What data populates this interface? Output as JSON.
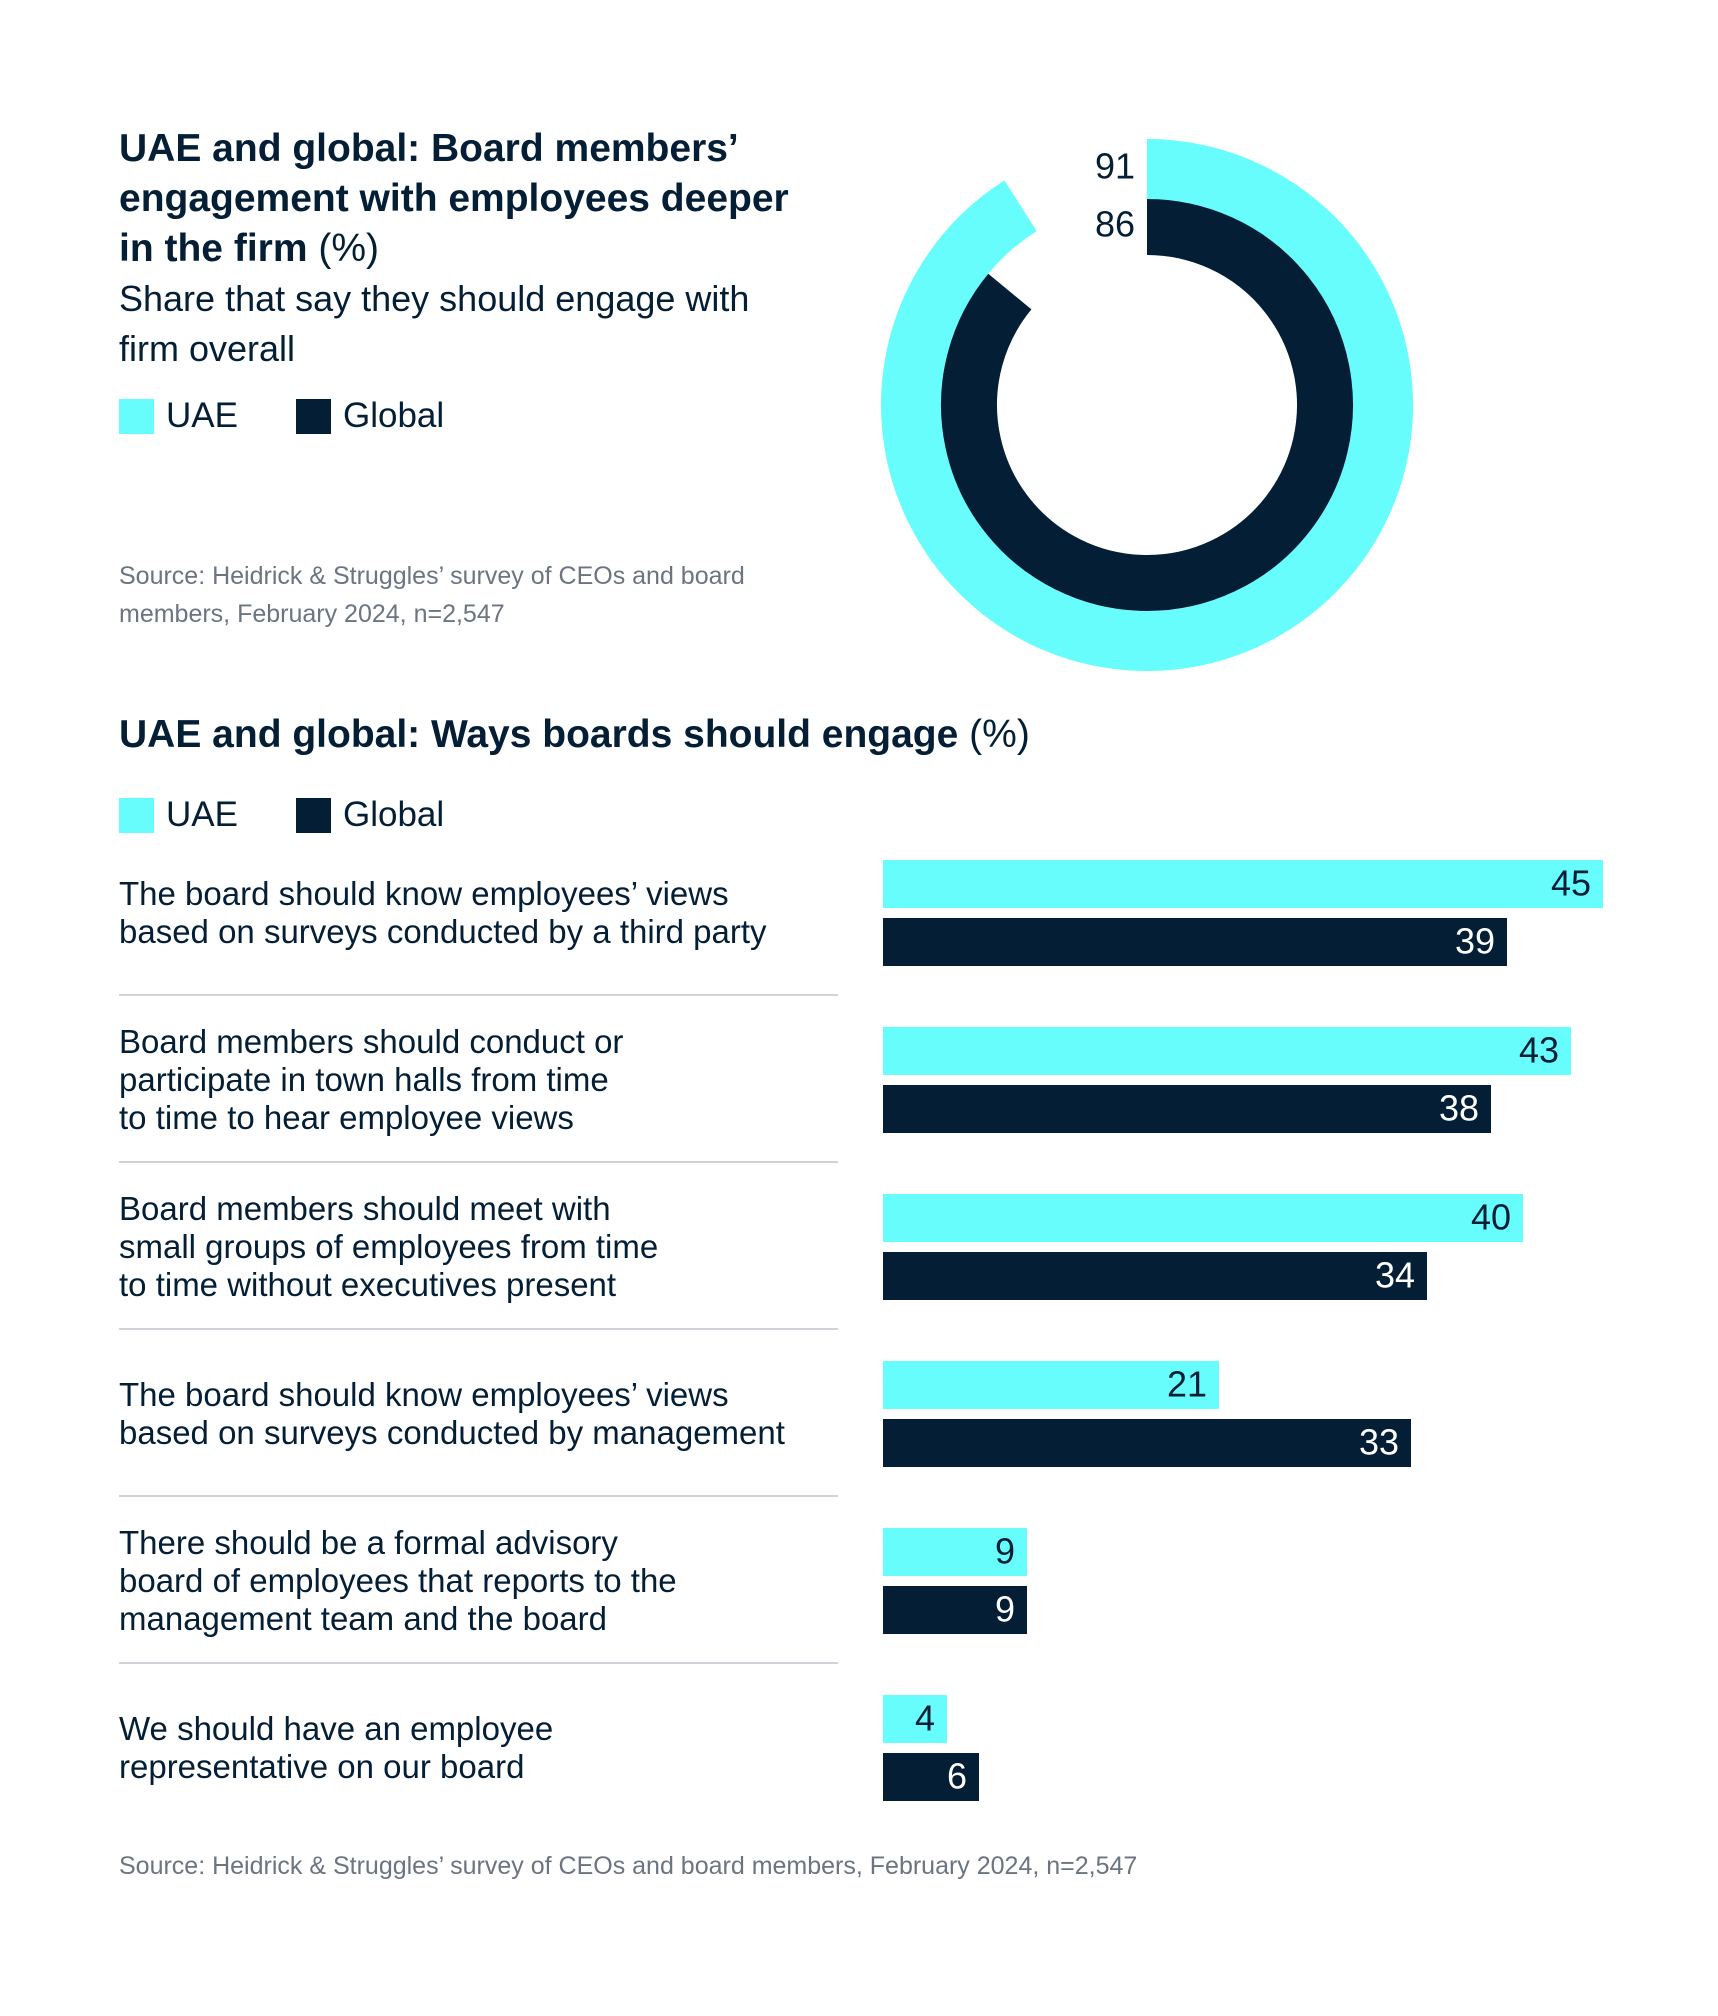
{
  "chart_data": [
    {
      "type": "radial",
      "title": "UAE and global: Board members’ engagement with employees deeper in the firm",
      "title_unit": "(%)",
      "subtitle": "Share that say they should engage with firm overall",
      "series": [
        {
          "name": "UAE",
          "color": "#66fdfc",
          "values": [
            91
          ]
        },
        {
          "name": "Global",
          "color": "#031e35",
          "values": [
            86
          ]
        }
      ],
      "source": "Source: Heidrick & Struggles’ survey of CEOs and board members, February 2024, n=2,547"
    },
    {
      "type": "bar",
      "title": "UAE and global: Ways boards should engage",
      "title_unit": "(%)",
      "categories": [
        "The board should know employees’ views\nbased on surveys conducted by a third party",
        "Board members should conduct or\nparticipate in town halls from time\nto time to hear employee views",
        "Board members should meet with\nsmall groups of employees from time\nto time without executives present",
        "The board should know employees’ views\nbased on surveys conducted by management",
        "There should be a formal advisory\nboard of employees that reports to the\nmanagement team and the board",
        "We should have an employee\nrepresentative on our board"
      ],
      "series": [
        {
          "name": "UAE",
          "color": "#66fdfc",
          "values": [
            45,
            43,
            40,
            21,
            9,
            4
          ]
        },
        {
          "name": "Global",
          "color": "#031e35",
          "values": [
            39,
            38,
            34,
            33,
            9,
            6
          ]
        }
      ],
      "source": "Source: Heidrick & Struggles’ survey of CEOs and board members, February 2024, n=2,547"
    }
  ]
}
